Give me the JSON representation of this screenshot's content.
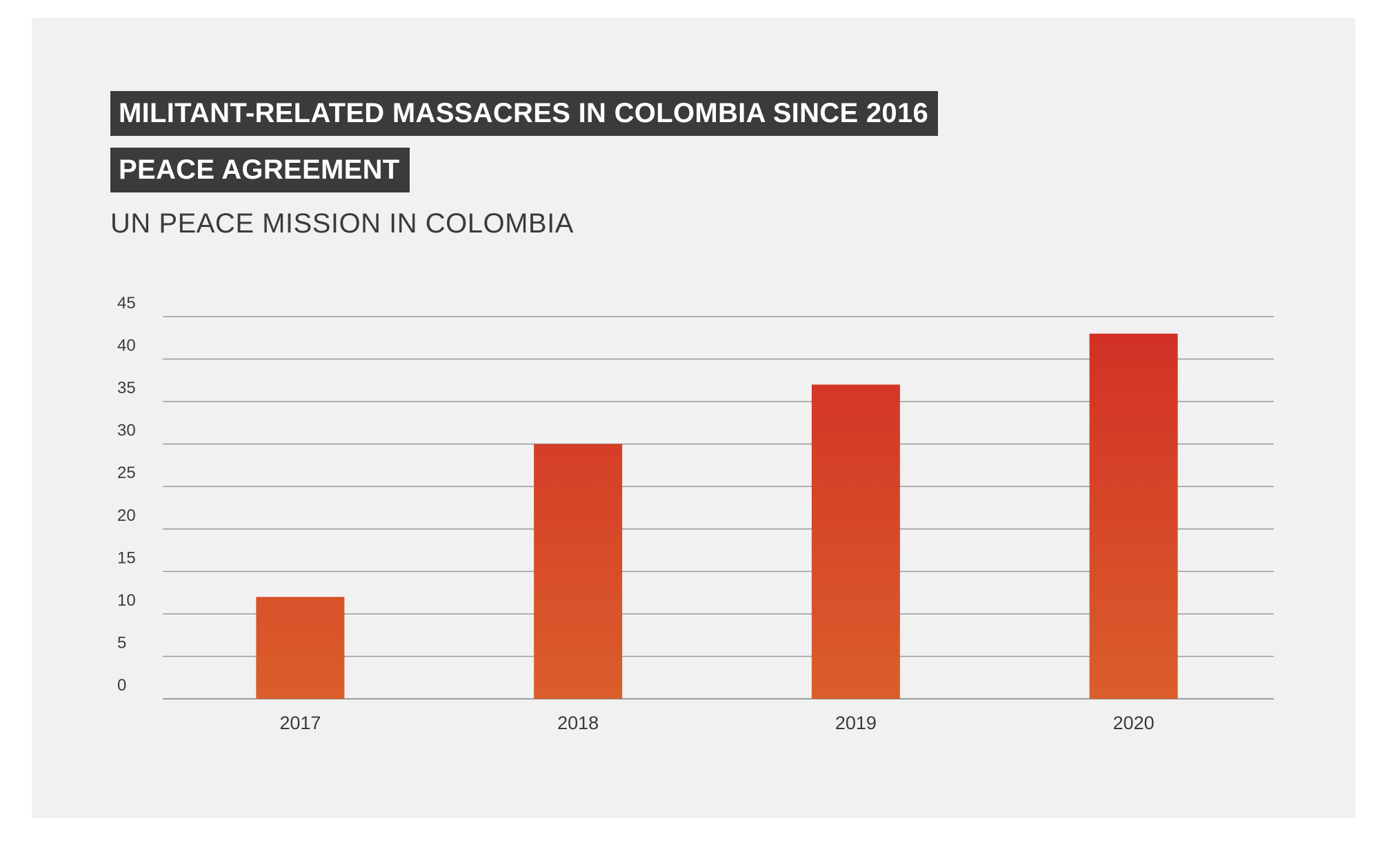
{
  "chart_data": {
    "type": "bar",
    "title": "MILITANT-RELATED MASSACRES IN COLOMBIA SINCE 2016 PEACE AGREEMENT",
    "title_lines": [
      "MILITANT-RELATED MASSACRES IN COLOMBIA SINCE 2016",
      "PEACE AGREEMENT"
    ],
    "subtitle": "UN PEACE MISSION IN COLOMBIA",
    "categories": [
      "2017",
      "2018",
      "2019",
      "2020"
    ],
    "values": [
      12,
      30,
      37,
      43
    ],
    "xlabel": "",
    "ylabel": "",
    "ylim": [
      0,
      45
    ],
    "yticks": [
      0,
      5,
      10,
      15,
      20,
      25,
      30,
      35,
      40,
      45
    ],
    "grid": true,
    "legend": "none",
    "colors": {
      "bar_top": "#d22e25",
      "bar_bottom": "#da5e2b",
      "background": "#f1f1f1",
      "title_box": "#3a3b3d",
      "grid": "#9a9a9a"
    }
  }
}
